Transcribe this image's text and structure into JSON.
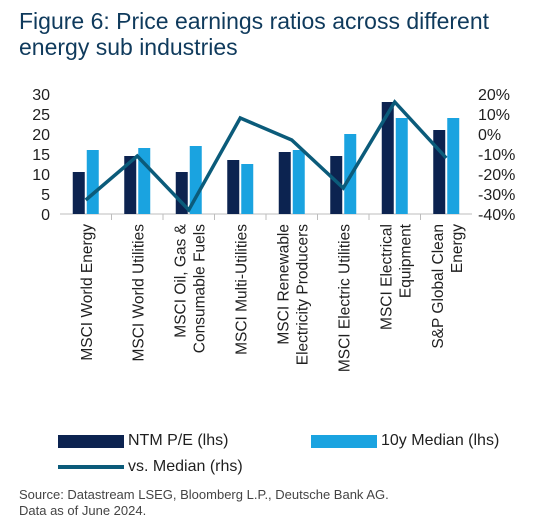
{
  "title": {
    "line1": "Figure 6: Price earnings ratios across different",
    "line2": "energy sub industries"
  },
  "chart_data": {
    "type": "bar",
    "categories": [
      [
        "MSCI World Energy"
      ],
      [
        "MSCI World Utilities"
      ],
      [
        "MSCI Oil, Gas &",
        "Consumable Fuels"
      ],
      [
        "MSCI Multi-Utilities"
      ],
      [
        "MSCI Renewable",
        "Electricity Producers"
      ],
      [
        "MSCI Electric Utilities"
      ],
      [
        "MSCI Electrical",
        "Equipment"
      ],
      [
        "S&P Global Clean",
        "Energy"
      ]
    ],
    "series": [
      {
        "name": "NTM P/E (lhs)",
        "type": "bar",
        "axis": "left",
        "color": "#0c2350",
        "values": [
          10.5,
          14.5,
          10.5,
          13.5,
          15.5,
          14.5,
          28,
          21
        ]
      },
      {
        "name": "10y Median (lhs)",
        "type": "bar",
        "axis": "left",
        "color": "#1aa3e0",
        "values": [
          16,
          16.5,
          17,
          12.5,
          16,
          20,
          24,
          24
        ]
      },
      {
        "name": "vs. Median (rhs)",
        "type": "line",
        "axis": "right",
        "color": "#0b5b7a",
        "values": [
          -33,
          -11,
          -38,
          8,
          -3,
          -27,
          16,
          -12
        ]
      }
    ],
    "y_left": {
      "min": 0,
      "max": 30,
      "ticks": [
        "0",
        "5",
        "10",
        "15",
        "20",
        "25",
        "30"
      ]
    },
    "y_right": {
      "min": -40,
      "max": 20,
      "ticks": [
        "-40%",
        "-30%",
        "-20%",
        "-10%",
        "0%",
        "10%",
        "20%"
      ]
    },
    "grid": false
  },
  "legend": {
    "ntm": "NTM P/E (lhs)",
    "median": "10y Median (lhs)",
    "vs": "vs. Median (rhs)"
  },
  "source": {
    "line1": "Source: Datastream LSEG, Bloomberg L.P., Deutsche Bank AG.",
    "line2": "Data as of June 2024."
  }
}
